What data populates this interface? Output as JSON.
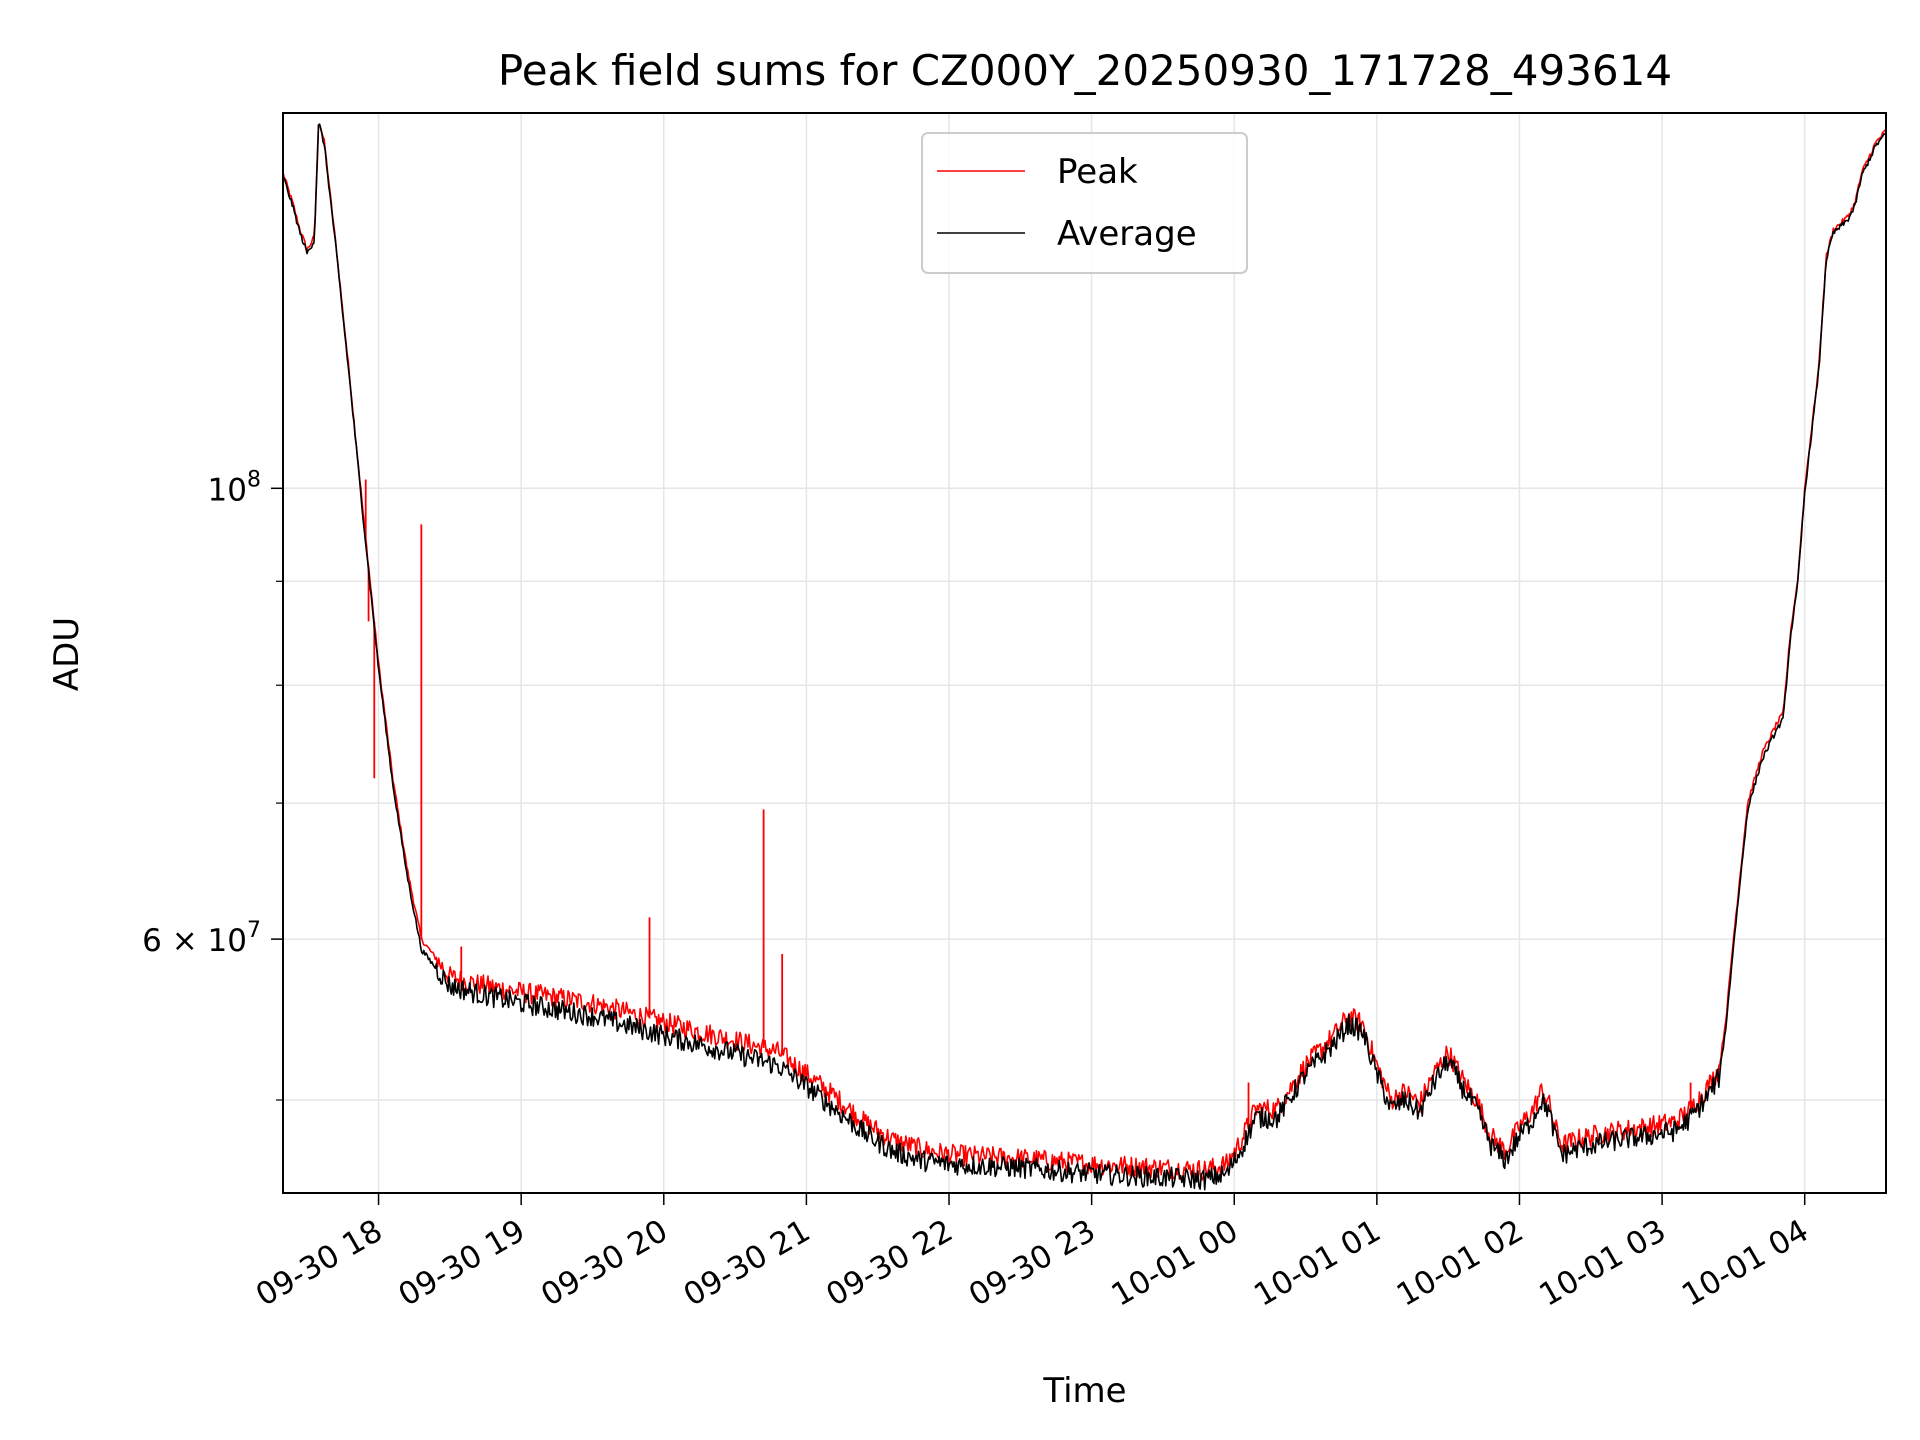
{
  "chart_data": {
    "type": "line",
    "title": "Peak field sums for CZ000Y_20250930_171728_493614",
    "xlabel": "Time",
    "ylabel": "ADU",
    "y_scale": "log",
    "xlim_hours_since_0930_1700": [
      0.33,
      11.57
    ],
    "ylim": [
      45000000,
      153000000
    ],
    "x_ticks": [
      {
        "hour": 1,
        "label": "09-30 18"
      },
      {
        "hour": 2,
        "label": "09-30 19"
      },
      {
        "hour": 3,
        "label": "09-30 20"
      },
      {
        "hour": 4,
        "label": "09-30 21"
      },
      {
        "hour": 5,
        "label": "09-30 22"
      },
      {
        "hour": 6,
        "label": "09-30 23"
      },
      {
        "hour": 7,
        "label": "10-01 00"
      },
      {
        "hour": 8,
        "label": "10-01 01"
      },
      {
        "hour": 9,
        "label": "10-01 02"
      },
      {
        "hour": 10,
        "label": "10-01 03"
      },
      {
        "hour": 11,
        "label": "10-01 04"
      }
    ],
    "y_major_ticks": [
      {
        "value": 100000000,
        "base": "10",
        "exp": "8"
      },
      {
        "value": 60000000,
        "base": "6 × 10",
        "exp": "7"
      }
    ],
    "y_minor_ticks": [
      50000000,
      70000000,
      80000000,
      90000000
    ],
    "grid": true,
    "legend_position": "top-center",
    "series": [
      {
        "name": "Peak",
        "color": "#ff0000",
        "x": [
          0.33,
          0.4,
          0.45,
          0.5,
          0.55,
          0.58,
          0.62,
          0.7,
          0.8,
          0.9,
          1.0,
          1.1,
          1.2,
          1.3,
          1.5,
          1.7,
          2.0,
          2.5,
          3.0,
          3.5,
          3.8,
          4.0,
          4.2,
          4.4,
          4.6,
          4.8,
          5.0,
          5.5,
          6.0,
          6.5,
          6.8,
          6.95,
          7.05,
          7.15,
          7.3,
          7.5,
          7.7,
          7.8,
          7.9,
          8.0,
          8.1,
          8.2,
          8.3,
          8.4,
          8.5,
          8.6,
          8.7,
          8.8,
          8.9,
          9.0,
          9.1,
          9.15,
          9.2,
          9.25,
          9.3,
          9.4,
          9.5,
          9.7,
          9.9,
          10.1,
          10.2,
          10.3,
          10.4,
          10.45,
          10.5,
          10.6,
          10.7,
          10.8,
          10.85,
          10.9,
          10.95,
          11.0,
          11.1,
          11.15,
          11.2,
          11.3,
          11.35,
          11.4,
          11.5,
          11.57
        ],
        "y": [
          143000000,
          138000000,
          134000000,
          131000000,
          133000000,
          152000000,
          148000000,
          132000000,
          113000000,
          96000000,
          82000000,
          72000000,
          65000000,
          60000000,
          57500000,
          57000000,
          56500000,
          55800000,
          54600000,
          53500000,
          52800000,
          51500000,
          50200000,
          48800000,
          47800000,
          47300000,
          47000000,
          46800000,
          46500000,
          46300000,
          46200000,
          46500000,
          47800000,
          49500000,
          49500000,
          52000000,
          53800000,
          55000000,
          54500000,
          52000000,
          50000000,
          50500000,
          49800000,
          51500000,
          52800000,
          51200000,
          50000000,
          48000000,
          47200000,
          48500000,
          49500000,
          50500000,
          50000000,
          48500000,
          47500000,
          47800000,
          48000000,
          48300000,
          48500000,
          48800000,
          49500000,
          50500000,
          51800000,
          55000000,
          60000000,
          70000000,
          74000000,
          76500000,
          77500000,
          85000000,
          90000000,
          100000000,
          115000000,
          130000000,
          134000000,
          136000000,
          138000000,
          143000000,
          148000000,
          150000000
        ]
      },
      {
        "name": "Average",
        "color": "#000000",
        "x": [
          0.33,
          0.4,
          0.45,
          0.5,
          0.55,
          0.58,
          0.62,
          0.7,
          0.8,
          0.9,
          1.0,
          1.1,
          1.2,
          1.3,
          1.5,
          1.7,
          2.0,
          2.5,
          3.0,
          3.5,
          3.8,
          4.0,
          4.2,
          4.4,
          4.6,
          4.8,
          5.0,
          5.5,
          6.0,
          6.5,
          6.8,
          6.95,
          7.05,
          7.15,
          7.3,
          7.5,
          7.7,
          7.8,
          7.9,
          8.0,
          8.1,
          8.2,
          8.3,
          8.4,
          8.5,
          8.6,
          8.7,
          8.8,
          8.9,
          9.0,
          9.1,
          9.15,
          9.2,
          9.25,
          9.3,
          9.4,
          9.5,
          9.7,
          9.9,
          10.1,
          10.2,
          10.3,
          10.4,
          10.45,
          10.5,
          10.6,
          10.7,
          10.8,
          10.85,
          10.9,
          10.95,
          11.0,
          11.1,
          11.15,
          11.2,
          11.3,
          11.35,
          11.4,
          11.5,
          11.57
        ],
        "y": [
          142500000,
          137500000,
          133500000,
          130500000,
          132500000,
          151500000,
          147500000,
          131500000,
          112500000,
          95500000,
          81500000,
          71500000,
          64500000,
          59300000,
          56900000,
          56400000,
          55800000,
          55000000,
          53800000,
          52700000,
          52000000,
          50800000,
          49500000,
          48200000,
          47200000,
          46700000,
          46500000,
          46300000,
          46000000,
          45800000,
          45700000,
          46000000,
          47300000,
          49000000,
          49000000,
          51500000,
          53300000,
          54500000,
          54000000,
          51500000,
          49500000,
          50000000,
          49300000,
          51000000,
          52300000,
          50700000,
          49500000,
          47500000,
          46700000,
          48000000,
          49000000,
          50000000,
          49500000,
          48000000,
          47000000,
          47300000,
          47500000,
          47800000,
          48000000,
          48300000,
          49000000,
          50000000,
          51300000,
          54500000,
          59500000,
          69500000,
          73500000,
          76000000,
          77000000,
          84500000,
          89500000,
          99500000,
          114500000,
          129500000,
          133500000,
          135500000,
          137500000,
          142500000,
          147500000,
          149500000
        ]
      }
    ],
    "spikes": [
      {
        "x": 0.91,
        "y": 101000000
      },
      {
        "x": 0.93,
        "y": 86000000
      },
      {
        "x": 0.97,
        "y": 72000000
      },
      {
        "x": 1.3,
        "y": 96000000
      },
      {
        "x": 1.58,
        "y": 59500000
      },
      {
        "x": 2.9,
        "y": 61500000
      },
      {
        "x": 3.7,
        "y": 69500000
      },
      {
        "x": 3.83,
        "y": 59000000
      },
      {
        "x": 7.1,
        "y": 51000000
      },
      {
        "x": 10.2,
        "y": 51000000
      }
    ]
  }
}
